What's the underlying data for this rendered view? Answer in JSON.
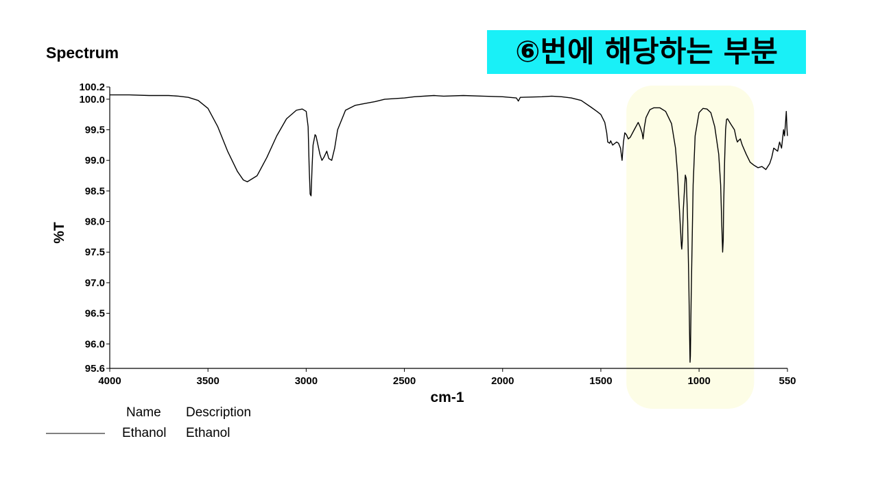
{
  "chart_data": {
    "type": "line",
    "title": "Spectrum",
    "xlabel": "cm-1",
    "ylabel": "%T",
    "xlim": [
      4000,
      550
    ],
    "ylim": [
      95.6,
      100.2
    ],
    "x_ticks": [
      4000,
      3500,
      3000,
      2500,
      2000,
      1500,
      1000,
      550
    ],
    "y_ticks": [
      "100.2",
      "100.0",
      "99.5",
      "99.0",
      "98.5",
      "98.0",
      "97.5",
      "97.0",
      "96.5",
      "96.0",
      "95.6"
    ],
    "grid": false,
    "highlight_region": {
      "x_from": 1370,
      "x_to": 720,
      "color": "#fdfde6"
    },
    "annotation": "⑥번에 해당하는 부분",
    "legend": {
      "name_header": "Name",
      "description_header": "Description",
      "entries": [
        {
          "name": "Ethanol",
          "description": "Ethanol"
        }
      ]
    },
    "series": [
      {
        "name": "Ethanol",
        "x": [
          4000,
          3900,
          3800,
          3700,
          3650,
          3600,
          3550,
          3500,
          3450,
          3400,
          3350,
          3320,
          3300,
          3250,
          3200,
          3150,
          3100,
          3050,
          3020,
          3000,
          2990,
          2985,
          2980,
          2975,
          2970,
          2965,
          2955,
          2950,
          2930,
          2920,
          2910,
          2895,
          2885,
          2870,
          2855,
          2840,
          2800,
          2750,
          2700,
          2650,
          2600,
          2500,
          2450,
          2350,
          2300,
          2200,
          2100,
          2000,
          1930,
          1920,
          1910,
          1800,
          1750,
          1700,
          1650,
          1600,
          1550,
          1520,
          1500,
          1480,
          1470,
          1465,
          1455,
          1450,
          1440,
          1420,
          1410,
          1400,
          1392,
          1385,
          1378,
          1370,
          1360,
          1350,
          1330,
          1310,
          1300,
          1290,
          1285,
          1278,
          1270,
          1250,
          1230,
          1200,
          1170,
          1140,
          1120,
          1110,
          1100,
          1090,
          1088,
          1085,
          1080,
          1070,
          1065,
          1058,
          1052,
          1048,
          1046,
          1044,
          1040,
          1030,
          1020,
          1000,
          980,
          960,
          940,
          920,
          900,
          890,
          885,
          880,
          877,
          875,
          870,
          865,
          860,
          855,
          840,
          820,
          810,
          805,
          800,
          790,
          780,
          760,
          740,
          720,
          700,
          680,
          660,
          640,
          630,
          620,
          600,
          590,
          580,
          570,
          565,
          560,
          556,
          552,
          550
        ],
        "y": [
          100.07,
          100.07,
          100.06,
          100.06,
          100.05,
          100.03,
          99.98,
          99.85,
          99.55,
          99.15,
          98.82,
          98.68,
          98.65,
          98.75,
          99.05,
          99.4,
          99.68,
          99.82,
          99.84,
          99.8,
          99.55,
          98.9,
          98.45,
          98.42,
          98.9,
          99.25,
          99.42,
          99.4,
          99.1,
          99.0,
          99.05,
          99.15,
          99.03,
          99.0,
          99.2,
          99.5,
          99.82,
          99.9,
          99.93,
          99.96,
          100.0,
          100.02,
          100.04,
          100.06,
          100.05,
          100.06,
          100.05,
          100.04,
          100.02,
          99.97,
          100.03,
          100.04,
          100.05,
          100.04,
          100.02,
          99.98,
          99.87,
          99.8,
          99.75,
          99.62,
          99.45,
          99.3,
          99.28,
          99.32,
          99.25,
          99.3,
          99.28,
          99.2,
          99.0,
          99.3,
          99.45,
          99.42,
          99.35,
          99.38,
          99.5,
          99.62,
          99.55,
          99.45,
          99.35,
          99.55,
          99.7,
          99.83,
          99.86,
          99.86,
          99.8,
          99.6,
          99.2,
          98.8,
          98.2,
          97.6,
          97.55,
          97.7,
          98.2,
          98.76,
          98.7,
          98.0,
          97.0,
          96.1,
          95.7,
          95.8,
          96.8,
          98.6,
          99.4,
          99.78,
          99.85,
          99.84,
          99.78,
          99.55,
          99.1,
          98.6,
          98.0,
          97.5,
          97.7,
          98.2,
          99.0,
          99.5,
          99.67,
          99.68,
          99.6,
          99.5,
          99.35,
          99.3,
          99.32,
          99.35,
          99.25,
          99.1,
          98.97,
          98.92,
          98.88,
          98.9,
          98.85,
          98.95,
          99.05,
          99.2,
          99.15,
          99.3,
          99.2,
          99.5,
          99.4,
          99.6,
          99.8,
          99.5,
          99.4
        ]
      }
    ]
  }
}
